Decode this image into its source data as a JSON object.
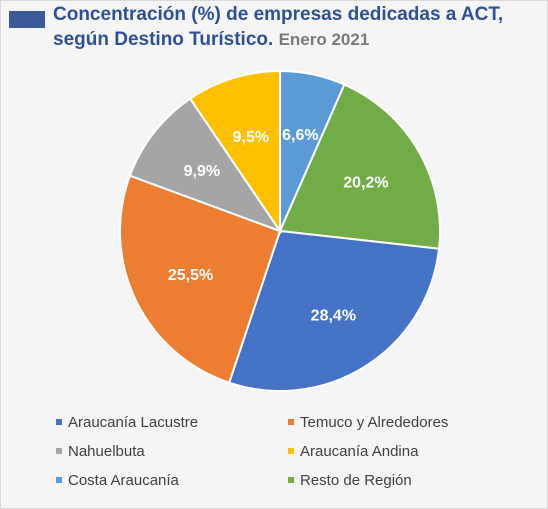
{
  "header": {
    "title_line1": "Concentración (%) de empresas dedicadas a ACT,",
    "title_line2": "según Destino Turístico.",
    "title_date": "Enero 2021"
  },
  "chart_data": {
    "type": "pie",
    "title": "Concentración (%) de empresas dedicadas a ACT, según Destino Turístico. Enero 2021",
    "legend_position": "bottom",
    "slices": [
      {
        "name": "Costa Araucanía",
        "value": 6.6,
        "label": "6,6%",
        "color": "#5b9bd5"
      },
      {
        "name": "Resto de Región",
        "value": 20.2,
        "label": "20,2%",
        "color": "#70ad47"
      },
      {
        "name": "Araucanía Lacustre",
        "value": 28.4,
        "label": "28,4%",
        "color": "#4472c4"
      },
      {
        "name": "Temuco y Alrededores",
        "value": 25.5,
        "label": "25,5%",
        "color": "#ed7d31"
      },
      {
        "name": "Nahuelbuta",
        "value": 9.9,
        "label": "9,9%",
        "color": "#a5a5a5"
      },
      {
        "name": "Araucanía Andina",
        "value": 9.5,
        "label": "9,5%",
        "color": "#ffc000"
      }
    ],
    "legend": [
      {
        "name": "Araucanía Lacustre",
        "color": "#4472c4"
      },
      {
        "name": "Temuco y Alrededores",
        "color": "#ed7d31"
      },
      {
        "name": "Nahuelbuta",
        "color": "#a5a5a5"
      },
      {
        "name": "Araucanía Andina",
        "color": "#ffc000"
      },
      {
        "name": "Costa Araucanía",
        "color": "#5b9bd5"
      },
      {
        "name": "Resto de Región",
        "color": "#70ad47"
      }
    ]
  }
}
